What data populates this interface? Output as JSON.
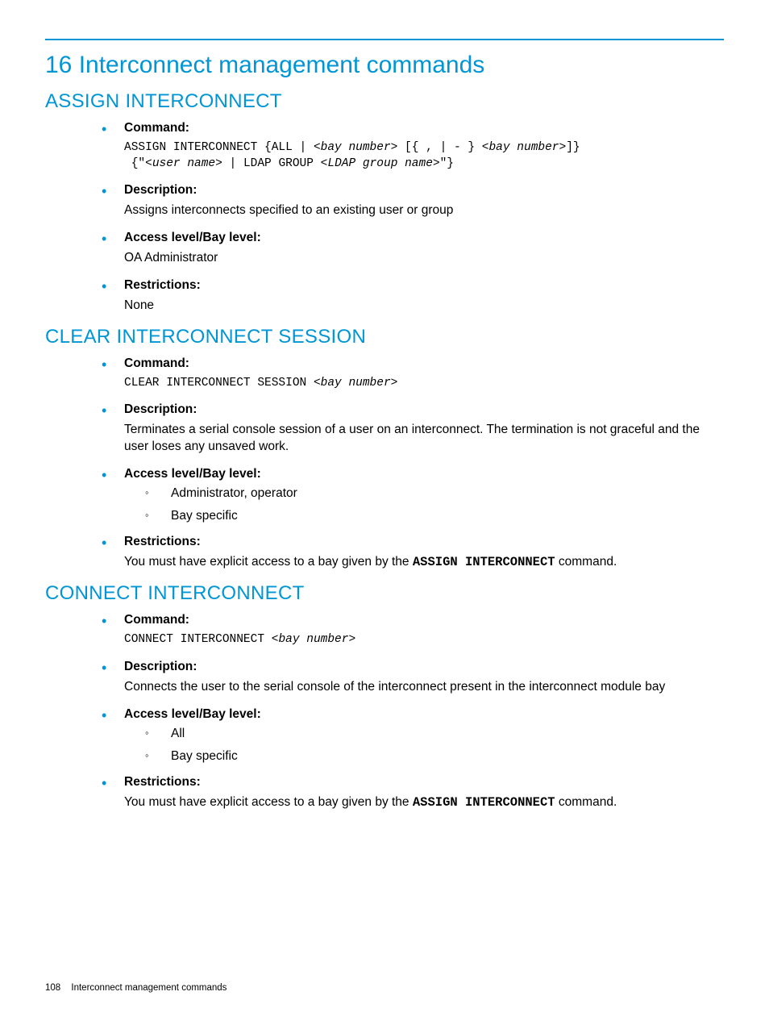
{
  "colors": {
    "accent": "#0096d6",
    "text": "#000000",
    "background": "#ffffff"
  },
  "chapter": "16 Interconnect management commands",
  "sections": [
    {
      "heading": "ASSIGN INTERCONNECT",
      "items": [
        {
          "label": "Command:",
          "code_html": "ASSIGN INTERCONNECT {ALL | <<span class=\"ital\">bay number</span>> [{ , | - } <<span class=\"ital\">bay number</span>>]}\n {\"<<span class=\"ital\">user name</span>> | LDAP GROUP <<span class=\"ital\">LDAP group name</span>>\"}"
        },
        {
          "label": "Description:",
          "text": "Assigns interconnects specified to an existing user or group"
        },
        {
          "label": "Access level/Bay level:",
          "text": "OA Administrator"
        },
        {
          "label": "Restrictions:",
          "text": "None"
        }
      ]
    },
    {
      "heading": "CLEAR INTERCONNECT SESSION",
      "items": [
        {
          "label": "Command:",
          "code_html": "CLEAR INTERCONNECT SESSION <<span class=\"ital\">bay number</span>>"
        },
        {
          "label": "Description:",
          "text": "Terminates a serial console session of a user on an interconnect. The termination is not graceful and the user loses any unsaved work."
        },
        {
          "label": "Access level/Bay level:",
          "sublist": [
            "Administrator, operator",
            "Bay specific"
          ]
        },
        {
          "label": "Restrictions:",
          "rich_html": "You must have explicit access to a bay given by the <span class=\"mono-inline\">ASSIGN INTERCONNECT</span> command."
        }
      ]
    },
    {
      "heading": "CONNECT INTERCONNECT",
      "items": [
        {
          "label": "Command:",
          "code_html": "CONNECT INTERCONNECT <<span class=\"ital\">bay number</span>>"
        },
        {
          "label": "Description:",
          "text": "Connects the user to the serial console of the interconnect present in the interconnect module bay"
        },
        {
          "label": "Access level/Bay level:",
          "sublist": [
            "All",
            "Bay specific"
          ]
        },
        {
          "label": "Restrictions:",
          "rich_html": "You must have explicit access to a bay given by the <span class=\"mono-inline\">ASSIGN INTERCONNECT</span> command."
        }
      ]
    }
  ],
  "footer": {
    "page": "108",
    "title": "Interconnect management commands"
  }
}
